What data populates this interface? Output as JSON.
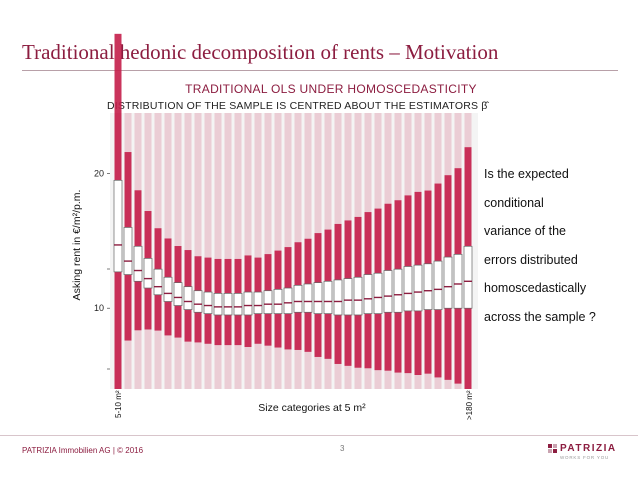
{
  "slide": {
    "title": "Traditional hedonic decomposition of rents – Motivation"
  },
  "callout": {
    "lines": [
      "Is the expected",
      "conditional",
      "variance of the",
      "errors distributed",
      "homoscedastically",
      "across the sample ?"
    ]
  },
  "footer": {
    "company": "PATRIZIA Immobilien AG | © 2016",
    "page": "3",
    "logo_name": "PATRIZIA",
    "logo_tagline": "WORKS FOR YOU"
  },
  "colors": {
    "accent": "#8c1d40",
    "points": "#c41e4a",
    "box_fill": "#ffffff",
    "median": "#8c1d40"
  },
  "chart_data": {
    "type": "box",
    "title": "TRADITIONAL OLS UNDER HOMOSCEDASTICITY",
    "subtitle": "DISTRIBUTION OF THE SAMPLE IS CENTRED ABOUT THE ESTIMATORS β̂",
    "xlabel": "Size categories at 5 m²",
    "ylabel": "Asking rent in €/m²/p.m.",
    "x_first_label": "5-10 m²",
    "x_last_label": ">180 m²",
    "yticks": [
      20,
      10
    ],
    "ylim": [
      4,
      24.5
    ],
    "grid": false,
    "boxes": [
      {
        "q1": 12.7,
        "median": 14.7,
        "q3": 19.5
      },
      {
        "q1": 12.5,
        "median": 13.5,
        "q3": 16.0
      },
      {
        "q1": 12.0,
        "median": 12.8,
        "q3": 14.6
      },
      {
        "q1": 11.5,
        "median": 12.2,
        "q3": 13.7
      },
      {
        "q1": 11.0,
        "median": 11.6,
        "q3": 12.9
      },
      {
        "q1": 10.5,
        "median": 11.1,
        "q3": 12.3
      },
      {
        "q1": 10.2,
        "median": 10.8,
        "q3": 11.9
      },
      {
        "q1": 9.9,
        "median": 10.5,
        "q3": 11.6
      },
      {
        "q1": 9.7,
        "median": 10.3,
        "q3": 11.3
      },
      {
        "q1": 9.6,
        "median": 10.2,
        "q3": 11.2
      },
      {
        "q1": 9.5,
        "median": 10.1,
        "q3": 11.1
      },
      {
        "q1": 9.5,
        "median": 10.1,
        "q3": 11.1
      },
      {
        "q1": 9.5,
        "median": 10.1,
        "q3": 11.1
      },
      {
        "q1": 9.5,
        "median": 10.2,
        "q3": 11.2
      },
      {
        "q1": 9.6,
        "median": 10.2,
        "q3": 11.2
      },
      {
        "q1": 9.6,
        "median": 10.3,
        "q3": 11.3
      },
      {
        "q1": 9.6,
        "median": 10.3,
        "q3": 11.4
      },
      {
        "q1": 9.6,
        "median": 10.4,
        "q3": 11.5
      },
      {
        "q1": 9.7,
        "median": 10.5,
        "q3": 11.7
      },
      {
        "q1": 9.7,
        "median": 10.5,
        "q3": 11.8
      },
      {
        "q1": 9.6,
        "median": 10.5,
        "q3": 11.9
      },
      {
        "q1": 9.6,
        "median": 10.5,
        "q3": 12.0
      },
      {
        "q1": 9.5,
        "median": 10.5,
        "q3": 12.1
      },
      {
        "q1": 9.5,
        "median": 10.6,
        "q3": 12.2
      },
      {
        "q1": 9.5,
        "median": 10.6,
        "q3": 12.3
      },
      {
        "q1": 9.6,
        "median": 10.7,
        "q3": 12.5
      },
      {
        "q1": 9.6,
        "median": 10.8,
        "q3": 12.6
      },
      {
        "q1": 9.7,
        "median": 10.9,
        "q3": 12.8
      },
      {
        "q1": 9.7,
        "median": 11.0,
        "q3": 12.9
      },
      {
        "q1": 9.8,
        "median": 11.1,
        "q3": 13.1
      },
      {
        "q1": 9.8,
        "median": 11.2,
        "q3": 13.2
      },
      {
        "q1": 9.9,
        "median": 11.3,
        "q3": 13.3
      },
      {
        "q1": 9.9,
        "median": 11.4,
        "q3": 13.5
      },
      {
        "q1": 10.0,
        "median": 11.6,
        "q3": 13.8
      },
      {
        "q1": 10.0,
        "median": 11.8,
        "q3": 14.0
      },
      {
        "q1": 10.0,
        "median": 12.0,
        "q3": 14.6
      }
    ]
  }
}
